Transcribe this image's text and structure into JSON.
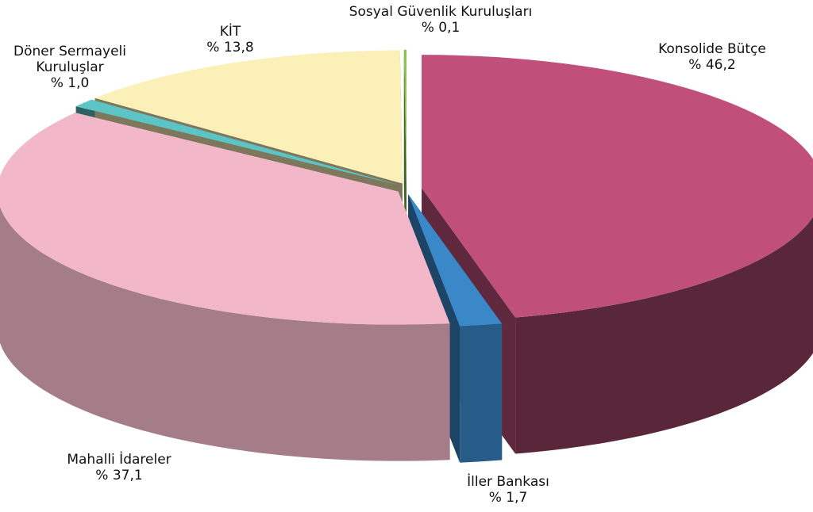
{
  "chart_data": {
    "type": "pie",
    "categories": [
      "Konsolide Bütçe",
      "İller Bankası",
      "Mahalli İdareler",
      "Döner Sermayeli Kuruluşlar",
      "KİT",
      "Sosyal Güvenlik Kuruluşları"
    ],
    "values": [
      46.2,
      1.7,
      37.1,
      1.0,
      13.8,
      0.1
    ],
    "value_labels": [
      "% 46,2",
      "% 1,7",
      "% 37,1",
      "% 1,0",
      "% 13,8",
      "% 0,1"
    ],
    "colors": [
      "#c0507a",
      "#3a88c8",
      "#f2b8c9",
      "#5cc4c4",
      "#faf0b8",
      "#8bc34a"
    ]
  }
}
